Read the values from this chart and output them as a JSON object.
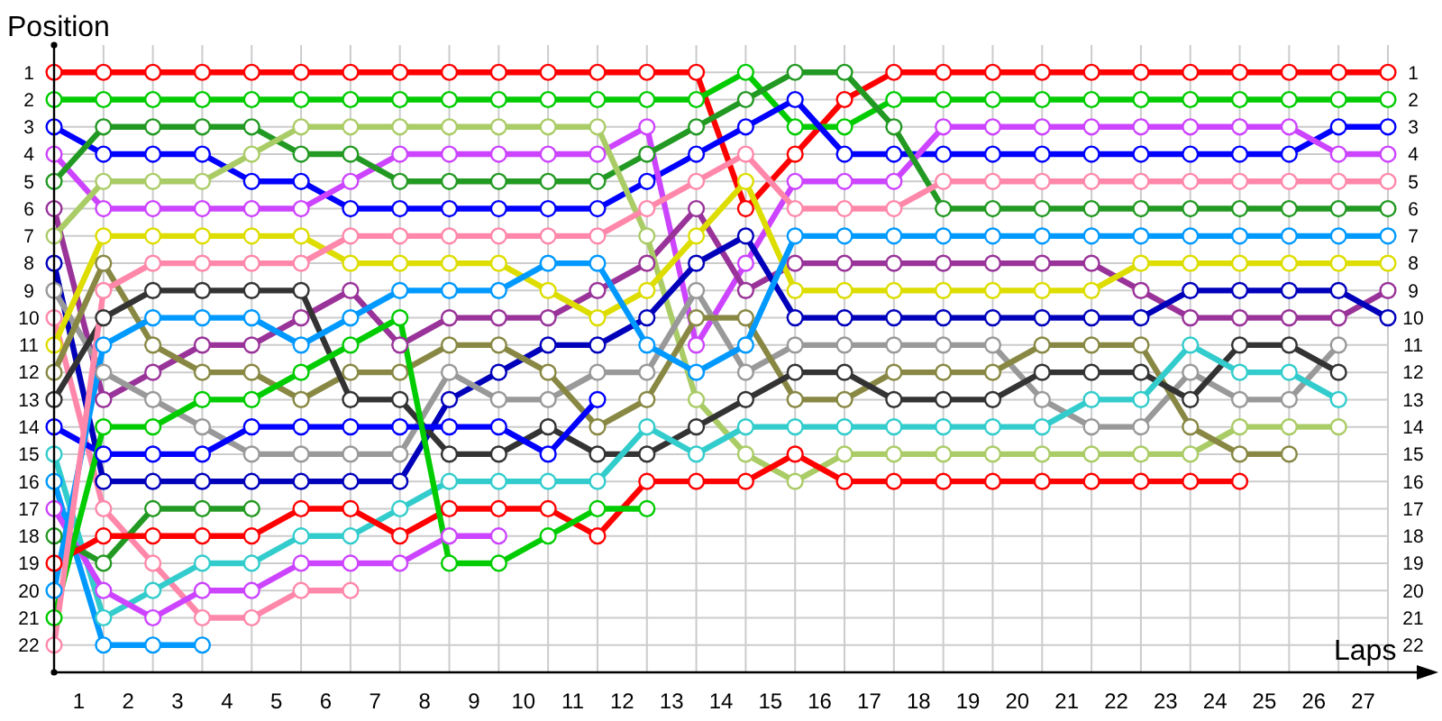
{
  "chart_data": {
    "type": "line",
    "xlabel": "Laps",
    "ylabel": "Position",
    "x": [
      0,
      1,
      2,
      3,
      4,
      5,
      6,
      7,
      8,
      9,
      10,
      11,
      12,
      13,
      14,
      15,
      16,
      17,
      18,
      19,
      20,
      21,
      22,
      23,
      24,
      25,
      26,
      27
    ],
    "xlim": [
      0,
      27
    ],
    "xticks": [
      {
        "value": 0.5,
        "label": "1"
      },
      {
        "value": 1.5,
        "label": "2"
      },
      {
        "value": 2.5,
        "label": "3"
      },
      {
        "value": 3.5,
        "label": "4"
      },
      {
        "value": 4.5,
        "label": "5"
      },
      {
        "value": 5.5,
        "label": "6"
      },
      {
        "value": 6.5,
        "label": "7"
      },
      {
        "value": 7.5,
        "label": "8"
      },
      {
        "value": 8.5,
        "label": "9"
      },
      {
        "value": 9.5,
        "label": "10"
      },
      {
        "value": 10.5,
        "label": "11"
      },
      {
        "value": 11.5,
        "label": "12"
      },
      {
        "value": 12.5,
        "label": "13"
      },
      {
        "value": 13.5,
        "label": "14"
      },
      {
        "value": 14.5,
        "label": "15"
      },
      {
        "value": 15.5,
        "label": "16"
      },
      {
        "value": 16.5,
        "label": "17"
      },
      {
        "value": 17.5,
        "label": "18"
      },
      {
        "value": 18.5,
        "label": "19"
      },
      {
        "value": 19.5,
        "label": "20"
      },
      {
        "value": 20.5,
        "label": "21"
      },
      {
        "value": 21.5,
        "label": "22"
      },
      {
        "value": 22.5,
        "label": "23"
      },
      {
        "value": 23.5,
        "label": "24"
      },
      {
        "value": 24.5,
        "label": "25"
      },
      {
        "value": 25.5,
        "label": "26"
      },
      {
        "value": 26.5,
        "label": "27"
      }
    ],
    "ylim": [
      23,
      0
    ],
    "yticks": [
      1,
      2,
      3,
      4,
      5,
      6,
      7,
      8,
      9,
      10,
      11,
      12,
      13,
      14,
      15,
      16,
      17,
      18,
      19,
      20,
      21,
      22
    ],
    "y2lim": [
      23,
      0
    ],
    "y2ticks": [
      1,
      2,
      3,
      4,
      5,
      6,
      7,
      8,
      9,
      10,
      11,
      12,
      13,
      14,
      15,
      16,
      17,
      18,
      19,
      20,
      21,
      22
    ],
    "grid": true,
    "marker": "circle",
    "line_style": "solid",
    "series": [
      {
        "color": "#ff0000",
        "values": [
          1,
          1,
          1,
          1,
          1,
          1,
          1,
          1,
          1,
          1,
          1,
          1,
          1,
          1,
          6,
          4,
          2,
          1,
          1,
          1,
          1,
          1,
          1,
          1,
          1,
          1,
          1,
          1
        ]
      },
      {
        "color": "#00cc00",
        "values": [
          2,
          2,
          2,
          2,
          2,
          2,
          2,
          2,
          2,
          2,
          2,
          2,
          2,
          2,
          1,
          3,
          3,
          2,
          2,
          2,
          2,
          2,
          2,
          2,
          2,
          2,
          2,
          2
        ]
      },
      {
        "color": "#0000ff",
        "values": [
          3,
          4,
          4,
          4,
          5,
          5,
          6,
          6,
          6,
          6,
          6,
          6,
          5,
          4,
          3,
          2,
          4,
          4,
          4,
          4,
          4,
          4,
          4,
          4,
          4,
          4,
          3,
          3
        ]
      },
      {
        "color": "#cc44ff",
        "values": [
          4,
          6,
          6,
          6,
          6,
          6,
          5,
          4,
          4,
          4,
          4,
          4,
          3,
          11,
          8,
          5,
          5,
          5,
          3,
          3,
          3,
          3,
          3,
          3,
          3,
          3,
          4,
          4
        ]
      },
      {
        "color": "#229922",
        "values": [
          5,
          3,
          3,
          3,
          3,
          4,
          4,
          5,
          5,
          5,
          5,
          5,
          4,
          3,
          2,
          1,
          1,
          3,
          6,
          6,
          6,
          6,
          6,
          6,
          6,
          6,
          6,
          6
        ]
      },
      {
        "color": "#993399",
        "values": [
          6,
          13,
          12,
          11,
          11,
          10,
          9,
          11,
          10,
          10,
          10,
          9,
          8,
          6,
          9,
          8,
          8,
          8,
          8,
          8,
          8,
          8,
          9,
          10,
          10,
          10,
          10,
          9
        ]
      },
      {
        "color": "#aacc66",
        "values": [
          7,
          5,
          5,
          5,
          4,
          3,
          3,
          3,
          3,
          3,
          3,
          3,
          7,
          13,
          15,
          16,
          15,
          15,
          15,
          15,
          15,
          15,
          15,
          15,
          14,
          14,
          14,
          null
        ]
      },
      {
        "color": "#0000bb",
        "values": [
          8,
          16,
          16,
          16,
          16,
          16,
          16,
          16,
          13,
          12,
          11,
          11,
          10,
          8,
          7,
          10,
          10,
          10,
          10,
          10,
          10,
          10,
          10,
          9,
          9,
          9,
          9,
          10
        ]
      },
      {
        "color": "#999999",
        "values": [
          9,
          12,
          13,
          14,
          15,
          15,
          15,
          15,
          12,
          13,
          13,
          12,
          12,
          9,
          12,
          11,
          11,
          11,
          11,
          11,
          13,
          14,
          14,
          12,
          13,
          13,
          11,
          null
        ]
      },
      {
        "color": "#ff88aa",
        "values": [
          10,
          17,
          19,
          21,
          21,
          20,
          20,
          null,
          null,
          null,
          null,
          null,
          null,
          null,
          null,
          null,
          null,
          null,
          null,
          null,
          null,
          null,
          null,
          null,
          null,
          null,
          null,
          null
        ]
      },
      {
        "color": "#dddd00",
        "values": [
          11,
          7,
          7,
          7,
          7,
          7,
          8,
          8,
          8,
          8,
          9,
          10,
          9,
          7,
          5,
          9,
          9,
          9,
          9,
          9,
          9,
          9,
          8,
          8,
          8,
          8,
          8,
          8
        ]
      },
      {
        "color": "#888844",
        "values": [
          12,
          8,
          11,
          12,
          12,
          13,
          12,
          12,
          11,
          11,
          12,
          14,
          13,
          10,
          10,
          13,
          13,
          12,
          12,
          12,
          11,
          11,
          11,
          14,
          15,
          15,
          null,
          null
        ]
      },
      {
        "color": "#333333",
        "values": [
          13,
          10,
          9,
          9,
          9,
          9,
          13,
          13,
          15,
          15,
          14,
          15,
          15,
          14,
          13,
          12,
          12,
          13,
          13,
          13,
          12,
          12,
          12,
          13,
          11,
          11,
          12,
          null
        ]
      },
      {
        "color": "#0000ff",
        "values": [
          14,
          15,
          15,
          15,
          14,
          14,
          14,
          14,
          14,
          14,
          15,
          13,
          null,
          null,
          null,
          null,
          null,
          null,
          null,
          null,
          null,
          null,
          null,
          null,
          null,
          null,
          null,
          null
        ]
      },
      {
        "color": "#33cccc",
        "values": [
          15,
          21,
          20,
          19,
          19,
          18,
          18,
          17,
          16,
          16,
          16,
          16,
          14,
          15,
          14,
          14,
          14,
          14,
          14,
          14,
          14,
          13,
          13,
          11,
          12,
          12,
          13,
          null
        ]
      },
      {
        "color": "#0099ff",
        "values": [
          16,
          22,
          22,
          22,
          null,
          null,
          null,
          null,
          null,
          null,
          null,
          null,
          null,
          null,
          null,
          null,
          null,
          null,
          null,
          null,
          null,
          null,
          null,
          null,
          null,
          null,
          null,
          null
        ]
      },
      {
        "color": "#cc44ff",
        "values": [
          17,
          20,
          21,
          20,
          20,
          19,
          19,
          19,
          18,
          18,
          null,
          null,
          null,
          null,
          null,
          null,
          null,
          null,
          null,
          null,
          null,
          null,
          null,
          null,
          null,
          null,
          null,
          null
        ]
      },
      {
        "color": "#229922",
        "values": [
          18,
          19,
          17,
          17,
          17,
          null,
          null,
          null,
          null,
          null,
          null,
          null,
          null,
          null,
          null,
          null,
          null,
          null,
          null,
          null,
          null,
          null,
          null,
          null,
          null,
          null,
          null,
          null
        ]
      },
      {
        "color": "#ff0000",
        "values": [
          19,
          18,
          18,
          18,
          18,
          17,
          17,
          18,
          17,
          17,
          17,
          18,
          16,
          16,
          16,
          15,
          16,
          16,
          16,
          16,
          16,
          16,
          16,
          16,
          16,
          null,
          null,
          null
        ]
      },
      {
        "color": "#0099ff",
        "values": [
          20,
          11,
          10,
          10,
          10,
          11,
          10,
          9,
          9,
          9,
          8,
          8,
          11,
          12,
          11,
          7,
          7,
          7,
          7,
          7,
          7,
          7,
          7,
          7,
          7,
          7,
          7,
          7
        ]
      },
      {
        "color": "#00cc00",
        "values": [
          21,
          14,
          14,
          13,
          13,
          12,
          11,
          10,
          19,
          19,
          18,
          17,
          17,
          null,
          null,
          null,
          null,
          null,
          null,
          null,
          null,
          null,
          null,
          null,
          null,
          null,
          null,
          null
        ]
      },
      {
        "color": "#ff88aa",
        "values": [
          22,
          9,
          8,
          8,
          8,
          8,
          7,
          7,
          7,
          7,
          7,
          7,
          6,
          5,
          4,
          6,
          6,
          6,
          5,
          5,
          5,
          5,
          5,
          5,
          5,
          5,
          5,
          5
        ]
      }
    ]
  }
}
